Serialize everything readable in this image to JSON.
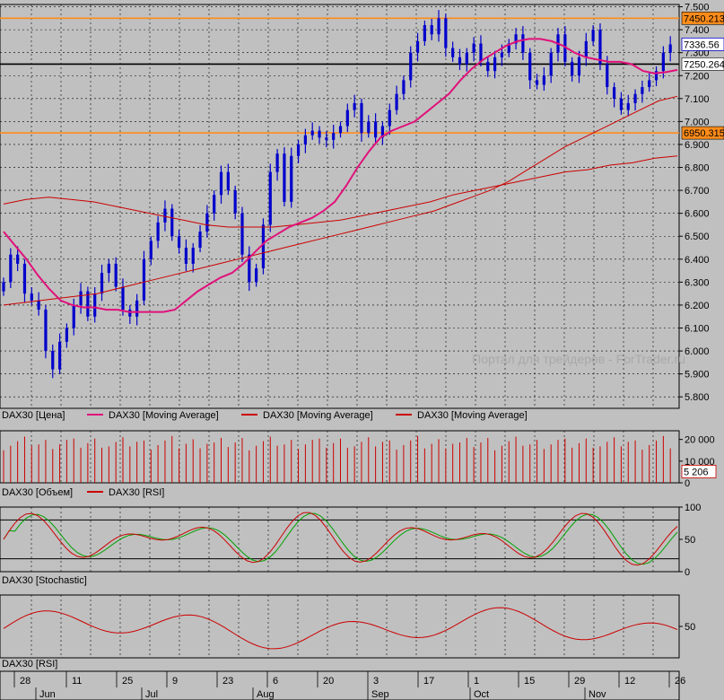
{
  "chart_data": [
    {
      "type": "line",
      "panel": "price",
      "legend": [
        {
          "label": "DAX30 [Цена]",
          "color": "#0000cc"
        },
        {
          "label": "DAX30 [Moving Average]",
          "color": "#e0107a"
        },
        {
          "label": "DAX30 [Moving Average]",
          "color": "#cc0000"
        },
        {
          "label": "DAX30 [Moving Average]",
          "color": "#cc0000"
        }
      ],
      "y_ticks": [
        "7.500",
        "7.400",
        "7.300",
        "7.200",
        "7.100",
        "7.000",
        "6.900",
        "6.800",
        "6.700",
        "6.600",
        "6.500",
        "6.400",
        "6.300",
        "6.200",
        "6.100",
        "6.000",
        "5.900",
        "5.800"
      ],
      "ylim": [
        5750,
        7510
      ],
      "hlines": [
        {
          "value": 7450.21,
          "label": "7450.213",
          "color": "#ff8c1a",
          "bg": "#ff8c1a"
        },
        {
          "value": 7250.26,
          "label": "7250.264",
          "color": "#000000",
          "bg": "#ffffff"
        },
        {
          "value": 6950.31,
          "label": "6950.315",
          "color": "#ff8c1a",
          "bg": "#ff8c1a"
        }
      ],
      "last_price": {
        "value": 7336.56,
        "label": "7336.56"
      },
      "watermark": "Портал для трейдеров - ForTrader.ru",
      "close": [
        6300,
        6420,
        6380,
        6250,
        6220,
        6180,
        6000,
        5920,
        6040,
        6100,
        6200,
        6260,
        6150,
        6250,
        6340,
        6380,
        6280,
        6180,
        6150,
        6220,
        6400,
        6480,
        6560,
        6620,
        6500,
        6450,
        6380,
        6450,
        6520,
        6600,
        6680,
        6780,
        6700,
        6600,
        6420,
        6300,
        6360,
        6550,
        6780,
        6860,
        6650,
        6850,
        6900,
        6940,
        6960,
        6930,
        6920,
        6950,
        6980,
        7050,
        7080,
        6950,
        7000,
        6930,
        6980,
        7050,
        7120,
        7180,
        7300,
        7350,
        7420,
        7380,
        7450,
        7320,
        7280,
        7250,
        7300,
        7340,
        7260,
        7220,
        7280,
        7300,
        7340,
        7380,
        7300,
        7180,
        7160,
        7200,
        7300,
        7380,
        7260,
        7200,
        7280,
        7350,
        7400,
        7250,
        7150,
        7100,
        7050,
        7080,
        7120,
        7150,
        7180,
        7220,
        7300,
        7336
      ],
      "ma_fast": [
        6520,
        6460,
        6400,
        6330,
        6270,
        6220,
        6200,
        6190,
        6190,
        6180,
        6180,
        6170,
        6170,
        6170,
        6170,
        6180,
        6220,
        6260,
        6290,
        6320,
        6340,
        6380,
        6430,
        6480,
        6510,
        6540,
        6560,
        6580,
        6610,
        6650,
        6720,
        6800,
        6870,
        6930,
        6960,
        6980,
        7000,
        7040,
        7080,
        7120,
        7180,
        7230,
        7270,
        7300,
        7330,
        7350,
        7360,
        7360,
        7350,
        7330,
        7300,
        7280,
        7270,
        7260,
        7260,
        7250,
        7220,
        7210,
        7215,
        7225
      ],
      "ma_mid": [
        6200,
        6210,
        6220,
        6230,
        6240,
        6250,
        6270,
        6290,
        6310,
        6330,
        6350,
        6370,
        6390,
        6410,
        6430,
        6450,
        6470,
        6490,
        6510,
        6530,
        6550,
        6570,
        6590,
        6610,
        6640,
        6670,
        6700,
        6740,
        6790,
        6840,
        6890,
        6930,
        6970,
        7010,
        7050,
        7090,
        7110
      ],
      "ma_slow": [
        6640,
        6660,
        6670,
        6660,
        6650,
        6630,
        6610,
        6590,
        6570,
        6550,
        6540,
        6540,
        6540,
        6550,
        6560,
        6570,
        6590,
        6610,
        6630,
        6650,
        6680,
        6700,
        6720,
        6740,
        6760,
        6780,
        6790,
        6810,
        6820,
        6840,
        6850
      ]
    },
    {
      "type": "bar",
      "panel": "volume",
      "legend": [
        {
          "label": "DAX30 [Объем]",
          "color": "#cc0000"
        },
        {
          "label": "DAX30 [RSI]",
          "color": "#cc0000"
        }
      ],
      "y_ticks": [
        "20 000",
        "10 000",
        "0"
      ],
      "ylim": [
        0,
        24000
      ],
      "last_value": {
        "value": 5206,
        "label": "5 206"
      }
    },
    {
      "type": "line",
      "panel": "stochastic",
      "legend": [
        {
          "label": "DAX30 [Stochastic]",
          "color": "#cc0000"
        }
      ],
      "y_ticks": [
        "100",
        "50",
        "0"
      ],
      "ylim": [
        0,
        100
      ],
      "levels": [
        20,
        80
      ]
    },
    {
      "type": "line",
      "panel": "rsi",
      "legend": [
        {
          "label": "DAX30 [RSI]",
          "color": "#cc0000"
        }
      ],
      "y_ticks": [
        "50"
      ],
      "ylim": [
        20,
        80
      ]
    }
  ],
  "x_axis": {
    "days": [
      "28",
      "11",
      "25",
      "9",
      "23",
      "6",
      "20",
      "3",
      "17",
      "1",
      "15",
      "29",
      "12",
      "26"
    ],
    "months": [
      "Jun",
      "Jul",
      "Aug",
      "Sep",
      "Oct",
      "Nov"
    ]
  }
}
